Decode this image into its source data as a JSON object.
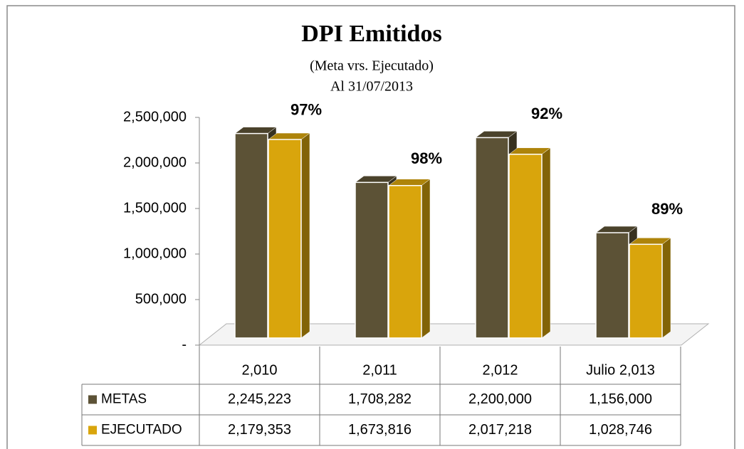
{
  "chart_data": {
    "type": "bar3d",
    "title": "DPI Emitidos",
    "subtitle": [
      "(Meta vrs. Ejecutado)",
      "Al 31/07/2013"
    ],
    "categories": [
      "2,010",
      "2,011",
      "2,012",
      "Julio 2,013"
    ],
    "series": [
      {
        "name": "METAS",
        "color": "#5c5236",
        "values": [
          2245223,
          1708282,
          2200000,
          1156000
        ],
        "value_labels": [
          "2,245,223",
          "1,708,282",
          "2,200,000",
          "1,156,000"
        ]
      },
      {
        "name": "EJECUTADO",
        "color": "#d9a50c",
        "values": [
          2179353,
          1673816,
          2017218,
          1028746
        ],
        "value_labels": [
          "2,179,353",
          "1,673,816",
          "2,017,218",
          "1,028,746"
        ]
      }
    ],
    "annotations": [
      "97%",
      "98%",
      "92%",
      "89%"
    ],
    "ylim": [
      0,
      2500000
    ],
    "yticks": [
      {
        "value": 0,
        "label": "-"
      },
      {
        "value": 500000,
        "label": "500,000"
      },
      {
        "value": 1000000,
        "label": "1,000,000"
      },
      {
        "value": 1500000,
        "label": "1,500,000"
      },
      {
        "value": 2000000,
        "label": "2,000,000"
      },
      {
        "value": 2500000,
        "label": "2,500,000"
      }
    ]
  }
}
